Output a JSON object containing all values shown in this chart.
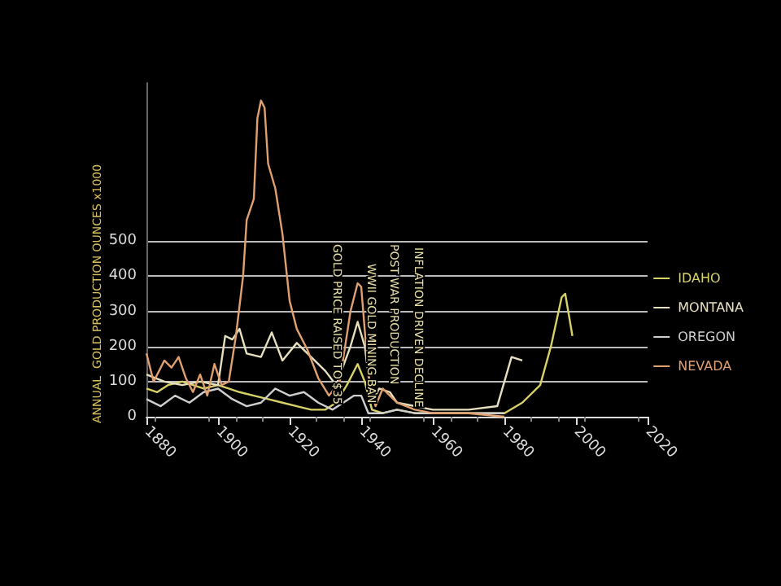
{
  "chart_data": {
    "type": "line",
    "ylabel": "ANNUAL  GOLD PRODUCTION OUNCES x1000",
    "xlim": [
      1880,
      2020
    ],
    "xticks": [
      1880,
      1900,
      1920,
      1940,
      1960,
      1980,
      2000,
      2020
    ],
    "ylim": [
      0,
      950
    ],
    "yticks": [
      0,
      100,
      200,
      300,
      400,
      500
    ],
    "grid": "y",
    "legend": "right",
    "marker": "none",
    "series": [
      {
        "name": "IDAHO",
        "color": "#d8d266",
        "x": [
          1880,
          1883,
          1886,
          1890,
          1893,
          1896,
          1900,
          1903,
          1906,
          1910,
          1914,
          1918,
          1922,
          1926,
          1930,
          1933,
          1936,
          1939,
          1941,
          1943,
          1946,
          1950,
          1955,
          1960,
          1970,
          1980,
          1985,
          1990,
          1993,
          1996,
          1997,
          1999
        ],
        "values": [
          80,
          70,
          90,
          100,
          90,
          80,
          90,
          80,
          70,
          60,
          50,
          40,
          30,
          20,
          20,
          40,
          90,
          150,
          100,
          20,
          10,
          20,
          10,
          10,
          10,
          10,
          40,
          90,
          200,
          340,
          350,
          230
        ]
      },
      {
        "name": "MONTANA",
        "color": "#e6dfc0",
        "x": [
          1880,
          1885,
          1890,
          1895,
          1900,
          1902,
          1904,
          1906,
          1908,
          1912,
          1915,
          1918,
          1922,
          1926,
          1930,
          1933,
          1937,
          1939,
          1941,
          1943,
          1945,
          1948,
          1950,
          1955,
          1960,
          1970,
          1978,
          1982,
          1985
        ],
        "values": [
          120,
          100,
          90,
          100,
          90,
          230,
          220,
          250,
          180,
          170,
          240,
          160,
          210,
          170,
          130,
          90,
          200,
          270,
          200,
          40,
          80,
          70,
          40,
          30,
          20,
          20,
          30,
          170,
          160
        ]
      },
      {
        "name": "OREGON",
        "color": "#cfcfcf",
        "x": [
          1880,
          1884,
          1888,
          1892,
          1896,
          1900,
          1904,
          1908,
          1912,
          1916,
          1920,
          1924,
          1928,
          1932,
          1935,
          1938,
          1940,
          1942,
          1946,
          1950,
          1955,
          1960,
          1970,
          1980
        ],
        "values": [
          50,
          30,
          60,
          40,
          70,
          80,
          50,
          30,
          40,
          80,
          60,
          70,
          40,
          20,
          40,
          60,
          60,
          10,
          10,
          20,
          10,
          10,
          10,
          10
        ]
      },
      {
        "name": "NEVADA",
        "color": "#e0a070",
        "x": [
          1880,
          1882,
          1885,
          1887,
          1889,
          1891,
          1893,
          1895,
          1897,
          1899,
          1901,
          1903,
          1905,
          1907,
          1908,
          1910,
          1911,
          1912,
          1913,
          1914,
          1916,
          1918,
          1920,
          1922,
          1925,
          1928,
          1931,
          1934,
          1937,
          1939,
          1940,
          1942,
          1944,
          1946,
          1948,
          1950,
          1955,
          1960,
          1970,
          1980
        ],
        "values": [
          180,
          100,
          160,
          140,
          170,
          110,
          70,
          120,
          60,
          150,
          90,
          100,
          230,
          400,
          560,
          620,
          850,
          900,
          880,
          720,
          650,
          520,
          330,
          250,
          190,
          110,
          60,
          100,
          300,
          380,
          370,
          120,
          30,
          80,
          60,
          40,
          20,
          10,
          10,
          0
        ]
      }
    ],
    "annotations": [
      "GOLD PRICE RAISED TO $35",
      "WWII GOLD MINING BAN",
      "POST WAR PRODUCTION",
      "INFLATION DRIVEN DECLINE"
    ]
  }
}
